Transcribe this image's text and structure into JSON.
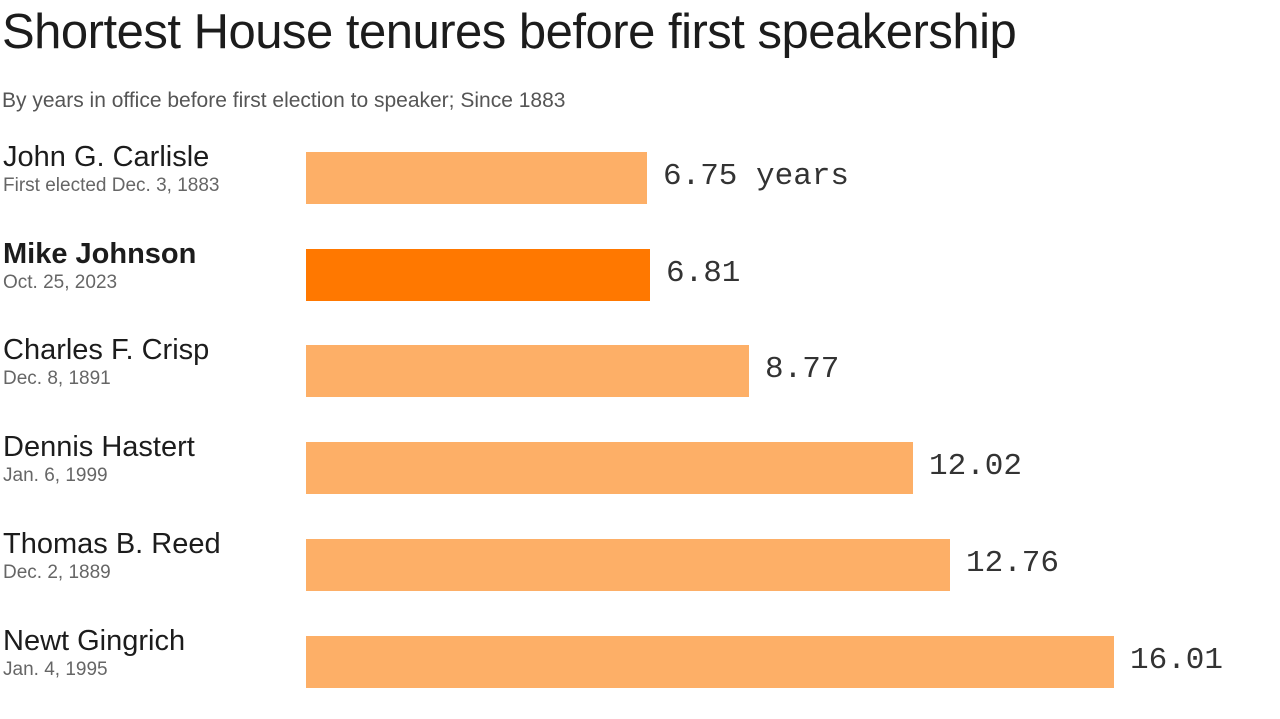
{
  "chart_data": {
    "type": "bar",
    "orientation": "horizontal",
    "title": "Shortest House tenures before first speakership",
    "subtitle": "By years in office before first election to speaker; Since 1883",
    "unit_label": "years",
    "xlim": [
      0,
      16.01
    ],
    "bars": [
      {
        "name": "John G. Carlisle",
        "date": "First elected Dec. 3, 1883",
        "value": 6.75,
        "value_label": "6.75 years",
        "highlight": false
      },
      {
        "name": "Mike Johnson",
        "date": "Oct. 25, 2023",
        "value": 6.81,
        "value_label": "6.81",
        "highlight": true
      },
      {
        "name": "Charles F. Crisp",
        "date": "Dec. 8, 1891",
        "value": 8.77,
        "value_label": "8.77",
        "highlight": false
      },
      {
        "name": "Dennis Hastert",
        "date": "Jan. 6, 1999",
        "value": 12.02,
        "value_label": "12.02",
        "highlight": false
      },
      {
        "name": "Thomas B. Reed",
        "date": "Dec. 2, 1889",
        "value": 12.76,
        "value_label": "12.76",
        "highlight": false
      },
      {
        "name": "Newt Gingrich",
        "date": "Jan. 4, 1995",
        "value": 16.01,
        "value_label": "16.01",
        "highlight": false
      }
    ],
    "colors": {
      "bar": "#fdaf67",
      "highlight": "#ff7800"
    }
  }
}
